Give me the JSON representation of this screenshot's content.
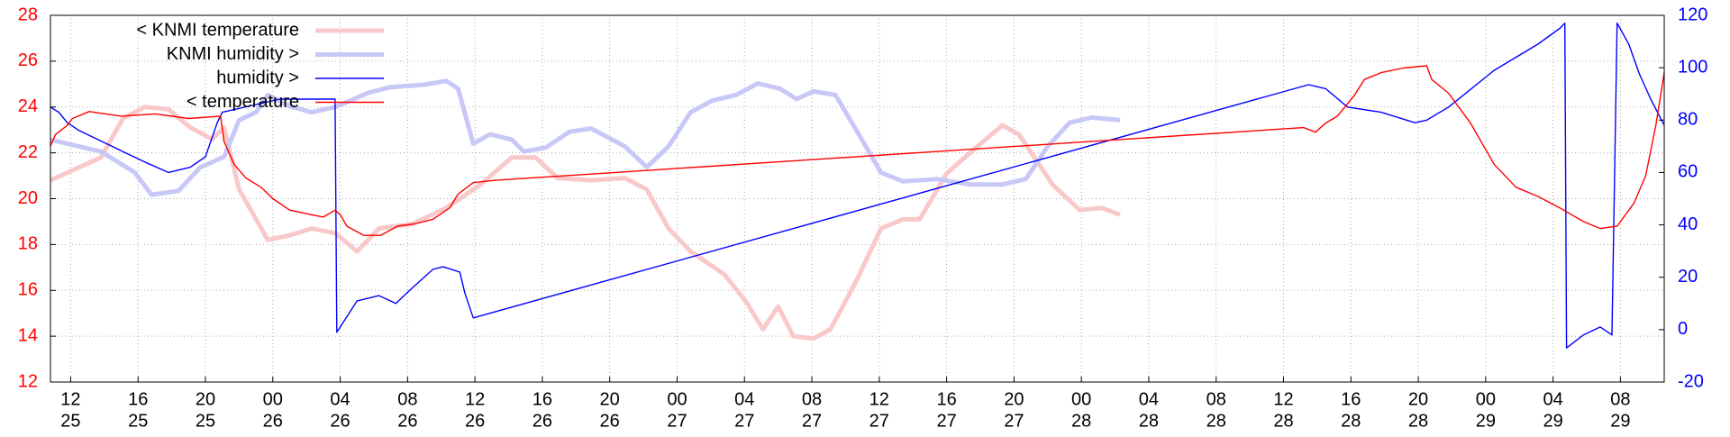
{
  "chart_data": {
    "type": "line",
    "legend": "upper left",
    "grid": true,
    "ytick_color": "#ff0000",
    "y2tick_color": "#0000ff",
    "xlim": [
      10.8,
      106.6
    ],
    "ylim": [
      12,
      28
    ],
    "yticks": [
      12,
      14,
      16,
      18,
      20,
      22,
      24,
      26,
      28
    ],
    "y2lim": [
      -20,
      120
    ],
    "y2ticks": [
      -20,
      0,
      20,
      40,
      60,
      80,
      100,
      120
    ],
    "xticks": [
      {
        "value": 12,
        "label": "12",
        "day": "25"
      },
      {
        "value": 16,
        "label": "16",
        "day": "25"
      },
      {
        "value": 20,
        "label": "20",
        "day": "25"
      },
      {
        "value": 24,
        "label": "00",
        "day": "26"
      },
      {
        "value": 28,
        "label": "04",
        "day": "26"
      },
      {
        "value": 32,
        "label": "08",
        "day": "26"
      },
      {
        "value": 36,
        "label": "12",
        "day": "26"
      },
      {
        "value": 40,
        "label": "16",
        "day": "26"
      },
      {
        "value": 44,
        "label": "20",
        "day": "26"
      },
      {
        "value": 48,
        "label": "00",
        "day": "27"
      },
      {
        "value": 52,
        "label": "04",
        "day": "27"
      },
      {
        "value": 56,
        "label": "08",
        "day": "27"
      },
      {
        "value": 60,
        "label": "12",
        "day": "27"
      },
      {
        "value": 64,
        "label": "16",
        "day": "27"
      },
      {
        "value": 68,
        "label": "20",
        "day": "27"
      },
      {
        "value": 72,
        "label": "00",
        "day": "28"
      },
      {
        "value": 76,
        "label": "04",
        "day": "28"
      },
      {
        "value": 80,
        "label": "08",
        "day": "28"
      },
      {
        "value": 84,
        "label": "12",
        "day": "28"
      },
      {
        "value": 88,
        "label": "16",
        "day": "28"
      },
      {
        "value": 92,
        "label": "20",
        "day": "28"
      },
      {
        "value": 96,
        "label": "00",
        "day": "29"
      },
      {
        "value": 100,
        "label": "04",
        "day": "29"
      },
      {
        "value": 104,
        "label": "08",
        "day": "29"
      }
    ],
    "series": [
      {
        "name": "< KNMI temperature",
        "color": "#f9c8c8",
        "width": 5,
        "axis": "y",
        "x": [
          10.8,
          13.8,
          15.1,
          16.4,
          17.8,
          19.1,
          20.4,
          21.1,
          22,
          23.7,
          25,
          26.3,
          27.7,
          29,
          30.3,
          32.3,
          34.3,
          36.3,
          38.2,
          39.6,
          40.9,
          42.9,
          44.9,
          46.2,
          47.5,
          48.8,
          50.8,
          52.1,
          53.1,
          54,
          54.9,
          56.1,
          57.1,
          58.7,
          60.1,
          61.4,
          62.4,
          64,
          65.7,
          67.3,
          68.3,
          70.3,
          71.9,
          73.2,
          74.3
        ],
        "values": [
          20.8,
          21.8,
          23.5,
          24,
          23.9,
          23.1,
          22.6,
          23.1,
          20.4,
          18.2,
          18.4,
          18.7,
          18.5,
          17.7,
          18.7,
          18.9,
          19.6,
          20.6,
          21.8,
          21.8,
          20.9,
          20.8,
          20.9,
          20.4,
          18.7,
          17.7,
          16.7,
          15.5,
          14.3,
          15.3,
          14,
          13.9,
          14.3,
          16.5,
          18.7,
          19.1,
          19.1,
          21.1,
          22.2,
          23.2,
          22.8,
          20.6,
          19.5,
          19.6,
          19.3
        ]
      },
      {
        "name": "KNMI humidity >",
        "color": "#c8c8f8",
        "width": 5,
        "axis": "y2",
        "x": [
          10.8,
          13.8,
          15.8,
          16.8,
          18.4,
          19.7,
          21.1,
          22,
          23,
          23.7,
          25,
          26.3,
          27.7,
          29.7,
          31,
          33,
          34.3,
          35,
          35.9,
          36.9,
          38.2,
          38.9,
          40.2,
          41.6,
          42.9,
          44.9,
          46.2,
          47.5,
          48.8,
          50.1,
          51.5,
          52.8,
          54.1,
          55.1,
          56.1,
          57.4,
          58.7,
          60.1,
          61.4,
          63.4,
          65.4,
          67.3,
          68.7,
          70,
          71.3,
          72.6,
          74.3
        ],
        "values": [
          72.5,
          68,
          60,
          51.5,
          53,
          62,
          66,
          80,
          83,
          89.6,
          85.3,
          83,
          85,
          90.5,
          92.6,
          93.5,
          95,
          92,
          71,
          74.6,
          72.5,
          68,
          69.5,
          75.5,
          76.8,
          70,
          62,
          70,
          83,
          87.5,
          89.6,
          94,
          92,
          88,
          91,
          89.6,
          75.5,
          60,
          56.6,
          57.5,
          55.4,
          55.4,
          57.5,
          70,
          79,
          81,
          80
        ]
      },
      {
        "name": "humidity >",
        "color": "#0000ff",
        "width": 1.4,
        "axis": "y2",
        "x": [
          10.8,
          11.3,
          11.8,
          12.5,
          13.8,
          15.1,
          16.4,
          17.8,
          19.1,
          20,
          20.7,
          21,
          24.4,
          27.7,
          27.8,
          28.3,
          29,
          30.3,
          31.3,
          32.3,
          33.5,
          34.1,
          35.1,
          35.4,
          35.9,
          85.2,
          85.5,
          86.5,
          87.8,
          89.8,
          91.8,
          92.5,
          93.8,
          96.5,
          99.1,
          100.4,
          100.7,
          100.8,
          101.8,
          102.8,
          103.5,
          103.8,
          104.5,
          105.1,
          105.8,
          106.6
        ],
        "values": [
          85,
          83,
          79,
          76,
          72,
          68,
          64,
          60,
          62,
          66,
          79,
          83,
          88,
          88,
          -1,
          4,
          11,
          13,
          10,
          16,
          23,
          24,
          22,
          14,
          4.5,
          93,
          93.5,
          92,
          85,
          83,
          79,
          80,
          85,
          99,
          109,
          115,
          117,
          -7,
          -2,
          1,
          -2,
          117,
          109,
          98,
          88,
          78
        ]
      },
      {
        "name": "< temperature",
        "color": "#ff0000",
        "width": 1.4,
        "axis": "y",
        "x": [
          10.8,
          11.1,
          11.8,
          12.1,
          13.1,
          15,
          17,
          19,
          20.9,
          21.1,
          21.7,
          22.4,
          23.3,
          24,
          25,
          26.3,
          27,
          27.7,
          28,
          28.4,
          29.4,
          30.4,
          31.4,
          32.4,
          33.5,
          34.5,
          35,
          35.9,
          37.2,
          85.2,
          85.9,
          86.5,
          87.2,
          88.2,
          88.8,
          89.8,
          91.1,
          92.5,
          92.8,
          93.8,
          95.1,
          96.5,
          97.8,
          99.1,
          100.4,
          101.8,
          102.8,
          103.8,
          104.8,
          105.5,
          106.1,
          106.6
        ],
        "values": [
          22.3,
          22.8,
          23.2,
          23.5,
          23.8,
          23.6,
          23.7,
          23.5,
          23.6,
          22.5,
          21.5,
          20.9,
          20.5,
          20,
          19.5,
          19.3,
          19.2,
          19.5,
          19.3,
          18.8,
          18.4,
          18.4,
          18.8,
          18.9,
          19.1,
          19.6,
          20.2,
          20.7,
          20.8,
          23.1,
          22.9,
          23.3,
          23.6,
          24.5,
          25.2,
          25.5,
          25.7,
          25.8,
          25.2,
          24.6,
          23.3,
          21.5,
          20.5,
          20.1,
          19.6,
          19.0,
          18.7,
          18.8,
          19.8,
          21,
          23.2,
          25.5
        ]
      }
    ]
  }
}
